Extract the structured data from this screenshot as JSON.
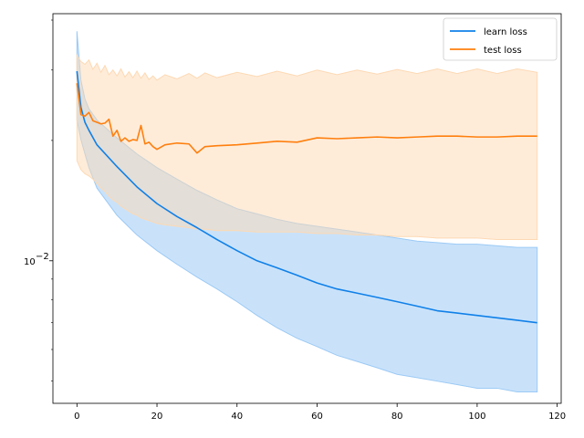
{
  "chart_data": {
    "type": "line",
    "title": "",
    "xlabel": "",
    "ylabel": "",
    "x_scale": "linear",
    "y_scale": "log",
    "xlim": [
      -6,
      121
    ],
    "ylim": [
      0.0044,
      0.0415
    ],
    "x_ticks": [
      0,
      20,
      40,
      60,
      80,
      100,
      120
    ],
    "x_tick_labels": [
      "0",
      "20",
      "40",
      "60",
      "80",
      "100",
      "120"
    ],
    "y_ticks": [
      0.01
    ],
    "y_tick_labels": [
      "10",
      "−2"
    ],
    "y_minor_ticks": [
      0.005,
      0.006,
      0.007,
      0.008,
      0.009,
      0.02,
      0.03,
      0.04
    ],
    "grid": false,
    "legend_position": "upper-right",
    "series": [
      {
        "name": "learn loss",
        "color": "#1080e8",
        "band_color": "#9ccaf5",
        "x": [
          0,
          1,
          2,
          3,
          5,
          10,
          15,
          20,
          25,
          30,
          35,
          40,
          45,
          50,
          55,
          60,
          65,
          70,
          75,
          80,
          85,
          90,
          95,
          100,
          105,
          110,
          115
        ],
        "y": [
          0.0298,
          0.0242,
          0.0222,
          0.0212,
          0.0195,
          0.0172,
          0.0153,
          0.0139,
          0.0129,
          0.0121,
          0.0113,
          0.0106,
          0.01,
          0.0096,
          0.0092,
          0.0088,
          0.0085,
          0.0083,
          0.0081,
          0.0079,
          0.0077,
          0.0075,
          0.0074,
          0.0073,
          0.0072,
          0.0071,
          0.007
        ],
        "band_upper": [
          0.0375,
          0.0283,
          0.0254,
          0.024,
          0.0225,
          0.0203,
          0.0185,
          0.0171,
          0.016,
          0.015,
          0.0142,
          0.0135,
          0.0131,
          0.0127,
          0.0124,
          0.0122,
          0.012,
          0.0118,
          0.0116,
          0.0114,
          0.0112,
          0.0111,
          0.011,
          0.011,
          0.0109,
          0.0108,
          0.0108
        ],
        "band_lower": [
          0.0225,
          0.0201,
          0.0185,
          0.0171,
          0.0152,
          0.013,
          0.0116,
          0.0106,
          0.0098,
          0.0091,
          0.0085,
          0.0079,
          0.0073,
          0.0068,
          0.0064,
          0.0061,
          0.0058,
          0.0056,
          0.0054,
          0.0052,
          0.0051,
          0.005,
          0.0049,
          0.0048,
          0.0048,
          0.0047,
          0.0047
        ]
      },
      {
        "name": "test loss",
        "color": "#ff7f0e",
        "band_color": "#fdd9b4",
        "x": [
          0,
          1,
          2,
          3,
          4,
          5,
          6,
          7,
          8,
          9,
          10,
          11,
          12,
          13,
          14,
          15,
          16,
          17,
          18,
          19,
          20,
          22,
          25,
          28,
          30,
          32,
          35,
          40,
          45,
          50,
          55,
          60,
          65,
          70,
          75,
          80,
          85,
          90,
          95,
          100,
          105,
          110,
          115
        ],
        "y": [
          0.0278,
          0.0232,
          0.023,
          0.0235,
          0.0224,
          0.0222,
          0.022,
          0.0221,
          0.0226,
          0.0205,
          0.0212,
          0.0199,
          0.0203,
          0.0199,
          0.0201,
          0.02,
          0.0218,
          0.0196,
          0.0198,
          0.0193,
          0.019,
          0.0195,
          0.0197,
          0.0196,
          0.0186,
          0.0193,
          0.0194,
          0.0195,
          0.0197,
          0.0199,
          0.0198,
          0.0203,
          0.0202,
          0.0203,
          0.0204,
          0.0203,
          0.0204,
          0.0205,
          0.0205,
          0.0204,
          0.0204,
          0.0205,
          0.0205
        ],
        "band_upper": [
          0.0327,
          0.0315,
          0.031,
          0.0318,
          0.0301,
          0.0312,
          0.0296,
          0.0308,
          0.0292,
          0.03,
          0.029,
          0.0302,
          0.0288,
          0.0297,
          0.0287,
          0.0298,
          0.0286,
          0.0295,
          0.0284,
          0.029,
          0.0283,
          0.0292,
          0.0285,
          0.0294,
          0.0286,
          0.0295,
          0.0287,
          0.0296,
          0.0289,
          0.0298,
          0.029,
          0.03,
          0.0292,
          0.03,
          0.0293,
          0.0301,
          0.0294,
          0.0302,
          0.0294,
          0.0302,
          0.0294,
          0.0302,
          0.0296
        ],
        "band_lower": [
          0.0178,
          0.0169,
          0.0165,
          0.0163,
          0.016,
          0.0156,
          0.0152,
          0.0149,
          0.0145,
          0.0142,
          0.014,
          0.0137,
          0.0135,
          0.0133,
          0.0131,
          0.013,
          0.0128,
          0.0127,
          0.0126,
          0.0125,
          0.0124,
          0.0123,
          0.0122,
          0.0121,
          0.012,
          0.012,
          0.0119,
          0.0119,
          0.0118,
          0.0118,
          0.0118,
          0.0117,
          0.0117,
          0.0116,
          0.0116,
          0.0115,
          0.0115,
          0.0114,
          0.0114,
          0.0114,
          0.0113,
          0.0113,
          0.0113
        ]
      }
    ]
  }
}
